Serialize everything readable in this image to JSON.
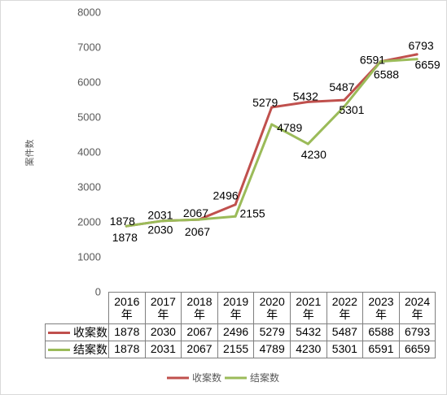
{
  "chart_data": {
    "type": "line",
    "categories": [
      "2016年",
      "2017年",
      "2018年",
      "2019年",
      "2020年",
      "2021年",
      "2022年",
      "2023年",
      "2024年"
    ],
    "series": [
      {
        "name": "收案数",
        "color": "#C0504D",
        "values": [
          1878,
          2030,
          2067,
          2496,
          5279,
          5432,
          5487,
          6588,
          6793
        ]
      },
      {
        "name": "结案数",
        "color": "#9BBB59",
        "values": [
          1878,
          2031,
          2067,
          2155,
          4789,
          4230,
          5301,
          6591,
          6659
        ]
      }
    ],
    "ylabel": "案件数",
    "ylim": [
      0,
      8000
    ],
    "yticks": [
      0,
      1000,
      2000,
      3000,
      4000,
      5000,
      6000,
      7000,
      8000
    ],
    "grid": false,
    "legend": "bottom",
    "data_labels": true,
    "data_table": true
  }
}
